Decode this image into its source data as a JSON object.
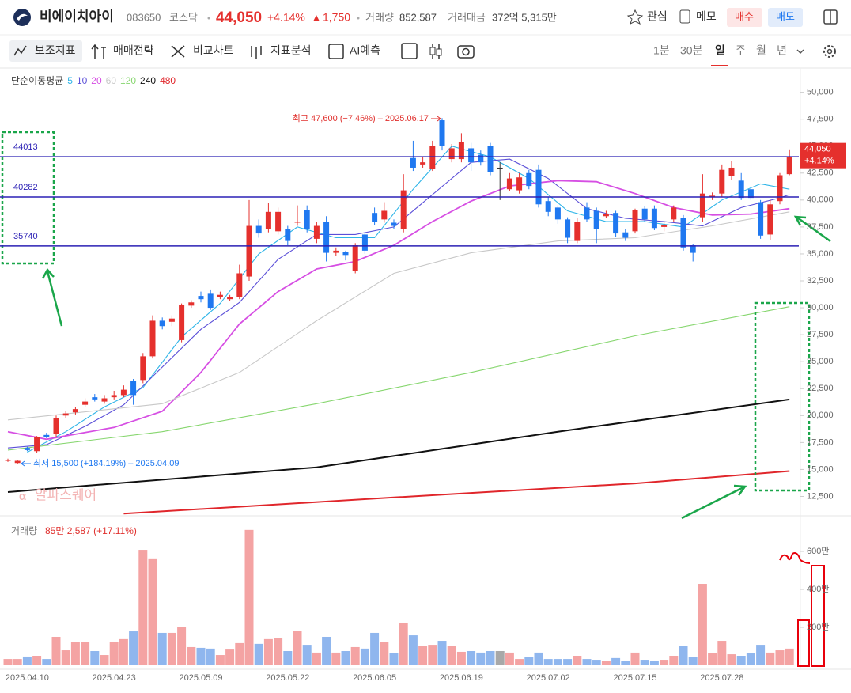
{
  "header": {
    "name": "비에이치아이",
    "code": "083650",
    "market": "코스닥",
    "price": "44,050",
    "change_pct": "+4.14%",
    "change": "1,750",
    "volume_label": "거래량",
    "volume": "852,587",
    "amount_label": "거래대금",
    "amount": "372억 5,315만",
    "actions": [
      "관심",
      "메모"
    ],
    "buy": "매수",
    "sell": "매도"
  },
  "toolbar": {
    "tools": [
      "보조지표",
      "매매전략",
      "비교차트",
      "지표분석",
      "AI예측"
    ],
    "periods": [
      "1분",
      "30분",
      "일",
      "주",
      "월",
      "년"
    ]
  },
  "chart_data": [
    {
      "type": "candlestick",
      "legend_title": "단순이동평균",
      "categories": [
        null,
        null,
        "2025.04.10",
        null,
        null,
        null,
        null,
        null,
        null,
        null,
        null,
        "2025.04.23",
        null,
        null,
        null,
        null,
        null,
        null,
        null,
        null,
        "2025.05.09",
        null,
        null,
        null,
        null,
        null,
        null,
        null,
        null,
        "2025.05.22",
        null,
        null,
        null,
        null,
        null,
        null,
        null,
        null,
        "2025.06.05",
        null,
        null,
        null,
        null,
        null,
        null,
        null,
        null,
        "2025.06.19",
        null,
        null,
        null,
        null,
        null,
        null,
        null,
        null,
        "2025.07.02",
        null,
        null,
        null,
        null,
        null,
        null,
        null,
        null,
        "2025.07.15",
        null,
        null,
        null,
        null,
        null,
        null,
        null,
        null,
        "2025.07.28",
        null,
        null,
        null,
        null,
        null,
        null,
        null
      ],
      "open": [
        15800,
        15600,
        17000,
        16700,
        18200,
        18300,
        20000,
        20300,
        21000,
        21700,
        21300,
        21700,
        21900,
        23200,
        23300,
        25500,
        28800,
        28700,
        27000,
        30200,
        31100,
        31300,
        31000,
        30800,
        31000,
        32900,
        37600,
        37300,
        37100,
        37300,
        37900,
        39100,
        36400,
        38000,
        35100,
        35200,
        33400,
        36800,
        38800,
        38200,
        37900,
        37300,
        43900,
        43300,
        42900,
        47400,
        43800,
        43800,
        44800,
        44200,
        45000,
        43000,
        41000,
        40900,
        42500,
        42800,
        39900,
        39300,
        38200,
        36200,
        39300,
        39000,
        38500,
        38800,
        37000,
        37100,
        39200,
        39200,
        37500,
        38200,
        38300,
        35800,
        38400,
        40300,
        40600,
        42200,
        41800,
        41000,
        39800,
        36800,
        39900,
        42400
      ],
      "high": [
        16000,
        15900,
        17100,
        18100,
        18400,
        20000,
        20400,
        20800,
        21600,
        22000,
        21900,
        22300,
        22800,
        23400,
        25800,
        29300,
        29100,
        29300,
        30400,
        30700,
        31500,
        31700,
        31500,
        31200,
        34000,
        40000,
        38200,
        39700,
        39300,
        37600,
        39500,
        39500,
        38000,
        38500,
        35600,
        35300,
        36000,
        37000,
        39300,
        39800,
        38200,
        42400,
        45500,
        44000,
        45500,
        47600,
        45200,
        46200,
        45300,
        44600,
        45300,
        43500,
        42500,
        42500,
        42800,
        43300,
        40300,
        39500,
        38400,
        38300,
        39800,
        39300,
        39000,
        39000,
        37300,
        39200,
        39400,
        39500,
        38000,
        39500,
        38600,
        35900,
        42400,
        40700,
        43300,
        43600,
        42500,
        41200,
        40000,
        40000,
        42500,
        44700
      ],
      "low": [
        15700,
        15500,
        16700,
        16500,
        17900,
        18000,
        19800,
        20100,
        20800,
        21300,
        21100,
        21500,
        21700,
        21000,
        23000,
        25300,
        28000,
        28300,
        26800,
        30000,
        30500,
        29800,
        30800,
        30600,
        30800,
        32500,
        36500,
        37000,
        36800,
        35800,
        37600,
        37000,
        36000,
        34300,
        34800,
        34400,
        33200,
        35000,
        37700,
        37900,
        37300,
        37000,
        42700,
        43000,
        42700,
        44600,
        43500,
        43500,
        42700,
        43200,
        42300,
        40000,
        40800,
        40600,
        41000,
        39300,
        38500,
        37800,
        36000,
        36000,
        38000,
        36000,
        38300,
        36600,
        36200,
        36900,
        38000,
        37200,
        37100,
        38000,
        35300,
        34300,
        38000,
        40000,
        40300,
        41900,
        40000,
        40000,
        36400,
        36300,
        39600,
        42300
      ],
      "close": [
        15900,
        15800,
        16800,
        18000,
        18000,
        19800,
        20200,
        20600,
        21300,
        21500,
        21600,
        21900,
        22400,
        21900,
        25500,
        28800,
        28300,
        29000,
        30300,
        30500,
        30800,
        30000,
        31200,
        31000,
        33200,
        37600,
        36900,
        38900,
        38900,
        36200,
        38000,
        37300,
        37600,
        35100,
        35300,
        34900,
        35800,
        35300,
        38000,
        39000,
        37600,
        40900,
        43000,
        43500,
        45000,
        45000,
        44800,
        45400,
        43500,
        43500,
        42600,
        43000,
        42000,
        42100,
        41300,
        39600,
        38900,
        38200,
        36500,
        38000,
        38200,
        37300,
        38700,
        36900,
        36500,
        39100,
        38200,
        37400,
        37700,
        39300,
        35600,
        35100,
        40600,
        40400,
        42800,
        43000,
        40200,
        40200,
        36700,
        39600,
        42300,
        44050
      ],
      "up_color": "#e5302d",
      "down_color": "#1f78f0",
      "flat_color": "#333333",
      "ylim": [
        10700,
        52100
      ],
      "yticks": [
        {
          "value": 12500,
          "label": "12,500"
        },
        {
          "value": 15000,
          "label": "15,000"
        },
        {
          "value": 17500,
          "label": "17,500"
        },
        {
          "value": 20000,
          "label": "20,000"
        },
        {
          "value": 22500,
          "label": "22,500"
        },
        {
          "value": 25000,
          "label": "25,000"
        },
        {
          "value": 27500,
          "label": "27,500"
        },
        {
          "value": 30000,
          "label": "30,000"
        },
        {
          "value": 32500,
          "label": "32,500"
        },
        {
          "value": 35000,
          "label": "35,000"
        },
        {
          "value": 37500,
          "label": "37,500"
        },
        {
          "value": 40000,
          "label": "40,000"
        },
        {
          "value": 42500,
          "label": "42,500"
        },
        {
          "value": 45000,
          "label": "45,000"
        },
        {
          "value": 47500,
          "label": "47,500"
        },
        {
          "value": 50000,
          "label": "50,000"
        }
      ],
      "series": [
        {
          "name": "5",
          "color": "#2fb5e8",
          "x": [
            2,
            6,
            10,
            14,
            18,
            22,
            26,
            30,
            34,
            38,
            42,
            46,
            50,
            54,
            58,
            62,
            66,
            70,
            74,
            78,
            81
          ],
          "values": [
            16600,
            18500,
            20800,
            22600,
            27300,
            30400,
            35000,
            37500,
            36500,
            36500,
            41000,
            45000,
            44000,
            42000,
            39000,
            38000,
            38000,
            37500,
            40000,
            41500,
            41000
          ]
        },
        {
          "name": "10",
          "color": "#5b4fd8",
          "x": [
            0,
            4,
            8,
            12,
            16,
            20,
            24,
            28,
            32,
            36,
            40,
            44,
            48,
            52,
            56,
            60,
            64,
            68,
            72,
            76,
            80,
            81
          ],
          "values": [
            17000,
            17300,
            19000,
            21000,
            24500,
            28000,
            30500,
            34500,
            36800,
            36800,
            37500,
            40500,
            43500,
            43800,
            42000,
            39200,
            38300,
            38000,
            37600,
            39300,
            40200,
            40500
          ]
        },
        {
          "name": "20",
          "color": "#d64fe3",
          "x": [
            0,
            4,
            11,
            16,
            20,
            24,
            28,
            32,
            36,
            40,
            44,
            48,
            52,
            57,
            61,
            65,
            69,
            73,
            77,
            81
          ],
          "values": [
            18500,
            17800,
            18900,
            20400,
            24000,
            28500,
            31500,
            33600,
            34300,
            35800,
            38000,
            39900,
            41300,
            41800,
            41700,
            40600,
            39300,
            38600,
            38700,
            39200
          ]
        },
        {
          "name": "60",
          "color": "#c8c8c8",
          "x": [
            0,
            16,
            24,
            32,
            40,
            48,
            57,
            65,
            73,
            81
          ],
          "values": [
            19600,
            21100,
            24000,
            28800,
            33200,
            35100,
            36200,
            36500,
            37600,
            38900
          ]
        },
        {
          "name": "120",
          "color": "#86d66e",
          "x": [
            0,
            16,
            32,
            48,
            65,
            81
          ],
          "values": [
            16800,
            18500,
            21100,
            24000,
            27400,
            30100
          ]
        },
        {
          "name": "240",
          "color": "#111111",
          "x": [
            0,
            32,
            57,
            81
          ],
          "values": [
            12900,
            15200,
            18500,
            21500
          ]
        },
        {
          "name": "480",
          "color": "#e0262b",
          "x": [
            12,
            40,
            65,
            81
          ],
          "values": [
            10900,
            12400,
            13700,
            14850
          ]
        }
      ],
      "levels": [
        44013,
        40282,
        35740
      ],
      "level_color": "#2b20b5",
      "annotations": [
        "최고 47,600 (−7.46%) – 2025.06.17",
        "최저 15,500 (+184.19%) – 2025.04.09"
      ],
      "price_tag": {
        "label": "44,050",
        "change": "+4.14%"
      },
      "watermark": "알파스퀘어"
    },
    {
      "type": "bar",
      "title": "거래량",
      "label": "85만 2,587 (+17.11%)",
      "values": [
        33,
        33,
        46,
        50,
        33,
        150,
        79,
        121,
        121,
        75,
        54,
        125,
        138,
        179,
        608,
        563,
        171,
        171,
        200,
        96,
        92,
        88,
        54,
        83,
        117,
        713,
        113,
        138,
        142,
        75,
        183,
        108,
        67,
        150,
        67,
        75,
        96,
        88,
        171,
        121,
        63,
        225,
        158,
        100,
        108,
        129,
        100,
        71,
        75,
        67,
        75,
        75,
        67,
        33,
        42,
        67,
        33,
        33,
        33,
        50,
        33,
        29,
        21,
        38,
        21,
        67,
        29,
        25,
        29,
        50,
        100,
        42,
        429,
        63,
        129,
        58,
        50,
        63,
        108,
        67,
        79,
        88
      ],
      "up_color": "#f4a3a3",
      "down_color": "#8fb6ee",
      "flat_color": "#a8a8a8",
      "ylim": [
        0,
        754
      ],
      "yticks": [
        {
          "value": 200,
          "label": "200만"
        },
        {
          "value": 400,
          "label": "400만"
        },
        {
          "value": 600,
          "label": "600만"
        }
      ]
    }
  ]
}
